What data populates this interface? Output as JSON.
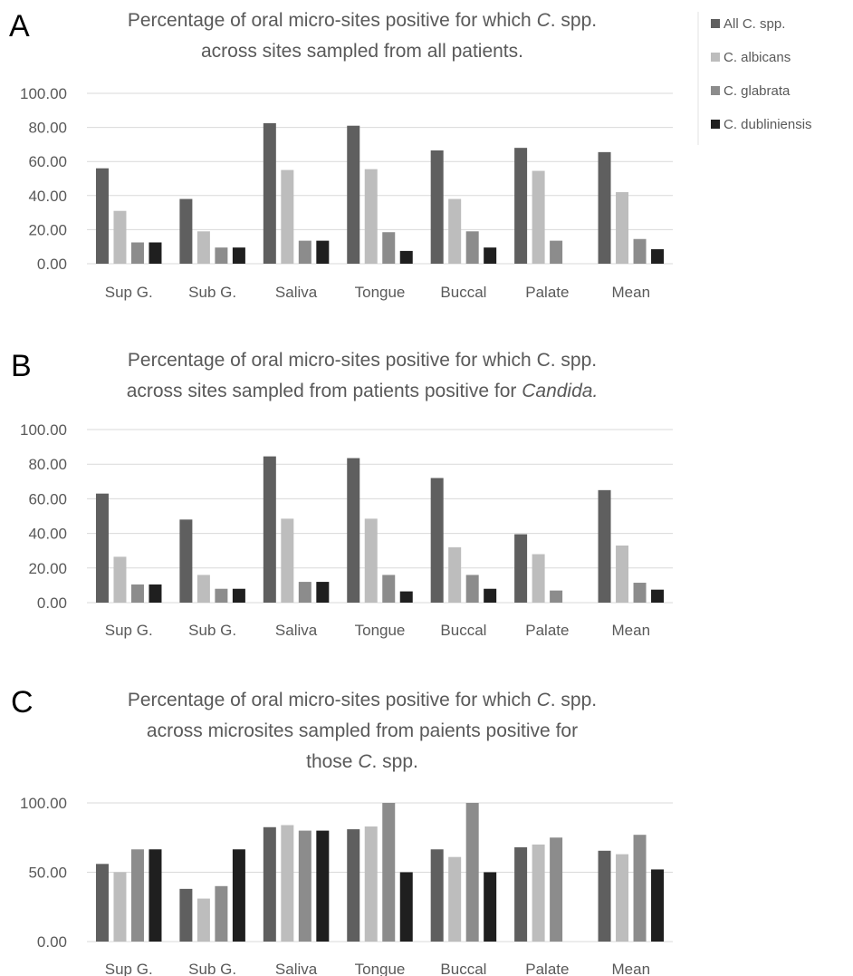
{
  "colors": {
    "all": "#5f5f5f",
    "albicans": "#bdbdbd",
    "glabrata": "#8c8c8c",
    "dubliniensis": "#1f1f1f"
  },
  "legend": {
    "items": [
      {
        "label": "All C. spp.",
        "color_key": "all"
      },
      {
        "label": "C. albicans",
        "color_key": "albicans"
      },
      {
        "label": "C. glabrata",
        "color_key": "glabrata"
      },
      {
        "label": "C. dubliniensis",
        "color_key": "dubliniensis"
      }
    ]
  },
  "chart_data": [
    {
      "type": "bar",
      "panel": "A",
      "title_lines": [
        [
          {
            "text": "Percentage of oral micro-sites positive for which "
          },
          {
            "text": "C",
            "italic": true
          },
          {
            "text": ". spp."
          }
        ],
        [
          {
            "text": "across sites sampled from all patients."
          }
        ]
      ],
      "categories": [
        "Sup G.",
        "Sub G.",
        "Saliva",
        "Tongue",
        "Buccal",
        "Palate",
        "Mean"
      ],
      "yticks": [
        "0.00",
        "20.00",
        "40.00",
        "60.00",
        "80.00",
        "100.00"
      ],
      "ylim": [
        0,
        100
      ],
      "grid": true,
      "series": [
        {
          "name": "All C. spp.",
          "color_key": "all",
          "values": [
            56,
            38,
            82.5,
            81,
            66.5,
            68,
            65.5
          ]
        },
        {
          "name": "C. albicans",
          "color_key": "albicans",
          "values": [
            31,
            19,
            55,
            55.5,
            38,
            54.5,
            42
          ]
        },
        {
          "name": "C. glabrata",
          "color_key": "glabrata",
          "values": [
            12.5,
            9.5,
            13.5,
            18.5,
            19,
            13.5,
            14.5
          ]
        },
        {
          "name": "C. dubliniensis",
          "color_key": "dubliniensis",
          "values": [
            12.5,
            9.5,
            13.5,
            7.5,
            9.5,
            0,
            8.5
          ]
        }
      ]
    },
    {
      "type": "bar",
      "panel": "B",
      "title_lines": [
        [
          {
            "text": "Percentage of oral micro-sites positive for which C. spp."
          }
        ],
        [
          {
            "text": "across sites sampled from patients positive for "
          },
          {
            "text": "Candida.",
            "italic": true
          }
        ]
      ],
      "categories": [
        "Sup G.",
        "Sub G.",
        "Saliva",
        "Tongue",
        "Buccal",
        "Palate",
        "Mean"
      ],
      "yticks": [
        "0.00",
        "20.00",
        "40.00",
        "60.00",
        "80.00",
        "100.00"
      ],
      "ylim": [
        0,
        100
      ],
      "grid": true,
      "series": [
        {
          "name": "All C. spp.",
          "color_key": "all",
          "values": [
            63,
            48,
            84.5,
            83.5,
            72,
            39.5,
            65
          ]
        },
        {
          "name": "C. albicans",
          "color_key": "albicans",
          "values": [
            26.5,
            16,
            48.5,
            48.5,
            32,
            28,
            33
          ]
        },
        {
          "name": "C. glabrata",
          "color_key": "glabrata",
          "values": [
            10.5,
            8,
            12,
            16,
            16,
            7,
            11.5
          ]
        },
        {
          "name": "C. dubliniensis",
          "color_key": "dubliniensis",
          "values": [
            10.5,
            8,
            12,
            6.5,
            8,
            0,
            7.5
          ]
        }
      ]
    },
    {
      "type": "bar",
      "panel": "C",
      "title_lines": [
        [
          {
            "text": "Percentage of oral micro-sites positive for which "
          },
          {
            "text": "C",
            "italic": true
          },
          {
            "text": ". spp."
          }
        ],
        [
          {
            "text": "across microsites sampled from paients positive for"
          }
        ],
        [
          {
            "text": "those "
          },
          {
            "text": "C",
            "italic": true
          },
          {
            "text": ". spp."
          }
        ]
      ],
      "categories": [
        "Sup G.",
        "Sub G.",
        "Saliva",
        "Tongue",
        "Buccal",
        "Palate",
        "Mean"
      ],
      "yticks": [
        "0.00",
        "50.00",
        "100.00"
      ],
      "ylim": [
        0,
        100
      ],
      "grid": true,
      "series": [
        {
          "name": "All C. spp.",
          "color_key": "all",
          "values": [
            56,
            38,
            82.5,
            81,
            66.5,
            68,
            65.5
          ]
        },
        {
          "name": "C. albicans",
          "color_key": "albicans",
          "values": [
            50,
            31,
            84,
            83,
            61,
            70,
            63
          ]
        },
        {
          "name": "C. glabrata",
          "color_key": "glabrata",
          "values": [
            66.5,
            40,
            80,
            100,
            100,
            75,
            77
          ]
        },
        {
          "name": "C. dubliniensis",
          "color_key": "dubliniensis",
          "values": [
            66.5,
            66.5,
            80,
            50,
            50,
            0,
            52
          ]
        }
      ]
    }
  ]
}
